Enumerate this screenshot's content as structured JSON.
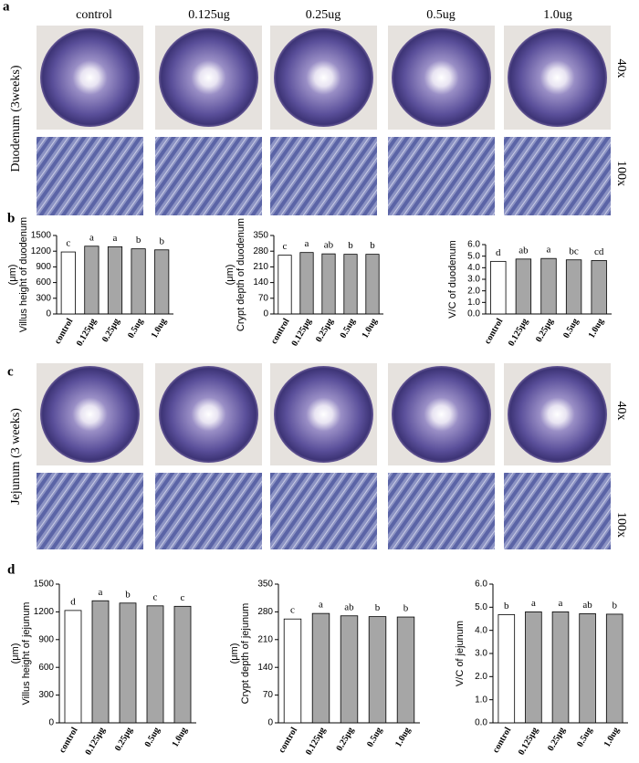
{
  "figure": {
    "panel_labels": [
      "a",
      "b",
      "c",
      "d"
    ],
    "doses": [
      "control",
      "0.125ug",
      "0.25ug",
      "0.5ug",
      "1.0ug"
    ],
    "magnifications": [
      "40x",
      "100x"
    ],
    "sections": [
      "Duodenum (3weeks)",
      "Jejunum (3 weeks)"
    ]
  },
  "chart_data": [
    {
      "type": "bar",
      "ylabel": [
        "Villus height of duodenum",
        "(μm)"
      ],
      "categories": [
        "control",
        "0.125μg",
        "0.25μg",
        "0.5ug",
        "1.0ug"
      ],
      "values": [
        1185,
        1295,
        1285,
        1245,
        1225
      ],
      "annotations": [
        "c",
        "a",
        "a",
        "b",
        "b"
      ],
      "colors": [
        "#ffffff",
        "#a6a6a6",
        "#a6a6a6",
        "#a6a6a6",
        "#a6a6a6"
      ],
      "ylim": [
        0,
        1500
      ],
      "yticks": [
        0,
        300,
        600,
        900,
        1200,
        1500
      ]
    },
    {
      "type": "bar",
      "ylabel": [
        "Crypt depth of duodenum",
        "(μm)"
      ],
      "categories": [
        "control",
        "0.125μg",
        "0.25μg",
        "0.5ug",
        "1.0ug"
      ],
      "values": [
        262,
        274,
        268,
        266,
        266
      ],
      "annotations": [
        "c",
        "a",
        "ab",
        "b",
        "b"
      ],
      "colors": [
        "#ffffff",
        "#a6a6a6",
        "#a6a6a6",
        "#a6a6a6",
        "#a6a6a6"
      ],
      "ylim": [
        0,
        350
      ],
      "yticks": [
        0,
        70,
        140,
        210,
        280,
        350
      ]
    },
    {
      "type": "bar",
      "ylabel": [
        "V/C of duodenum"
      ],
      "categories": [
        "control",
        "0.125μg",
        "0.25μg",
        "0.5ug",
        "1.0ug"
      ],
      "values": [
        4.55,
        4.75,
        4.8,
        4.68,
        4.62
      ],
      "annotations": [
        "d",
        "ab",
        "a",
        "bc",
        "cd"
      ],
      "colors": [
        "#ffffff",
        "#a6a6a6",
        "#a6a6a6",
        "#a6a6a6",
        "#a6a6a6"
      ],
      "ylim": [
        0,
        6
      ],
      "yticks": [
        {
          "value": 0,
          "label": "0.0"
        },
        {
          "value": 1,
          "label": "1.0"
        },
        {
          "value": 2,
          "label": "2.0"
        },
        {
          "value": 3,
          "label": "3.0"
        },
        {
          "value": 4,
          "label": "4.0"
        },
        {
          "value": 5,
          "label": "5.0"
        },
        {
          "value": 6,
          "label": "6.0"
        }
      ]
    },
    {
      "type": "bar",
      "ylabel": [
        "Villus height of jejunum",
        "(μm)"
      ],
      "categories": [
        "control",
        "0.125μg",
        "0.25μg",
        "0.5ug",
        "1.0ug"
      ],
      "values": [
        1215,
        1320,
        1295,
        1265,
        1260
      ],
      "annotations": [
        "d",
        "a",
        "b",
        "c",
        "c"
      ],
      "colors": [
        "#ffffff",
        "#a6a6a6",
        "#a6a6a6",
        "#a6a6a6",
        "#a6a6a6"
      ],
      "ylim": [
        0,
        1500
      ],
      "yticks": [
        0,
        300,
        600,
        900,
        1200,
        1500
      ]
    },
    {
      "type": "bar",
      "ylabel": [
        "Crypt depth of jejunum",
        "(μm)"
      ],
      "categories": [
        "control",
        "0.125μg",
        "0.25μg",
        "0.5ug",
        "1.0ug"
      ],
      "values": [
        262,
        276,
        270,
        268,
        267
      ],
      "annotations": [
        "c",
        "a",
        "ab",
        "b",
        "b"
      ],
      "colors": [
        "#ffffff",
        "#a6a6a6",
        "#a6a6a6",
        "#a6a6a6",
        "#a6a6a6"
      ],
      "ylim": [
        0,
        350
      ],
      "yticks": [
        0,
        70,
        140,
        210,
        280,
        350
      ]
    },
    {
      "type": "bar",
      "ylabel": [
        "V/C of jejunum"
      ],
      "categories": [
        "control",
        "0.125μg",
        "0.25μg",
        "0.5ug",
        "1.0ug"
      ],
      "values": [
        4.68,
        4.8,
        4.8,
        4.72,
        4.7
      ],
      "annotations": [
        "b",
        "a",
        "a",
        "ab",
        "b"
      ],
      "colors": [
        "#ffffff",
        "#a6a6a6",
        "#a6a6a6",
        "#a6a6a6",
        "#a6a6a6"
      ],
      "ylim": [
        0,
        6
      ],
      "yticks": [
        {
          "value": 0,
          "label": "0.0"
        },
        {
          "value": 1,
          "label": "1.0"
        },
        {
          "value": 2,
          "label": "2.0"
        },
        {
          "value": 3,
          "label": "3.0"
        },
        {
          "value": 4,
          "label": "4.0"
        },
        {
          "value": 5,
          "label": "5.0"
        },
        {
          "value": 6,
          "label": "6.0"
        }
      ]
    }
  ]
}
